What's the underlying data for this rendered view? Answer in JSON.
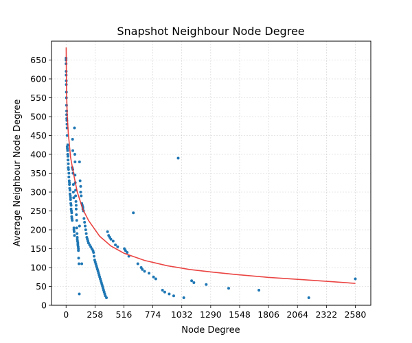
{
  "chart_data": {
    "type": "scatter",
    "title": "Snapshot Neighbour Node Degree",
    "xlabel": "Node Degree",
    "ylabel": "Average Neighbour Node Degree",
    "xlim": [
      -130,
      2718
    ],
    "ylim": [
      0,
      700
    ],
    "x_ticks": [
      0,
      258,
      516,
      774,
      1032,
      1290,
      1548,
      1806,
      2064,
      2322,
      2580
    ],
    "y_ticks": [
      0,
      50,
      100,
      150,
      200,
      250,
      300,
      350,
      400,
      450,
      500,
      550,
      600,
      650
    ],
    "grid": true,
    "colors": {
      "points": "#1f77b4",
      "fit": "#e8312f",
      "grid": "#b0b0b0"
    },
    "fit_curve": {
      "x": [
        1,
        2,
        5,
        10,
        20,
        40,
        70,
        100,
        150,
        200,
        300,
        400,
        516,
        700,
        900,
        1100,
        1300,
        1500,
        1800,
        2100,
        2400,
        2580
      ],
      "y": [
        683,
        630,
        560,
        505,
        455,
        392,
        343,
        300,
        254,
        225,
        183,
        157,
        138,
        119,
        105,
        95,
        88,
        82,
        74,
        68,
        62,
        58
      ]
    },
    "points": {
      "x": [
        0,
        0,
        0,
        1,
        1,
        2,
        2,
        3,
        3,
        4,
        5,
        5,
        6,
        7,
        8,
        9,
        10,
        10,
        12,
        14,
        15,
        15,
        17,
        18,
        20,
        20,
        22,
        25,
        25,
        28,
        30,
        30,
        32,
        35,
        35,
        38,
        40,
        40,
        42,
        45,
        45,
        48,
        50,
        50,
        52,
        55,
        55,
        58,
        60,
        60,
        62,
        65,
        65,
        68,
        70,
        70,
        72,
        75,
        75,
        78,
        80,
        80,
        82,
        85,
        85,
        88,
        90,
        90,
        92,
        95,
        95,
        98,
        100,
        100,
        102,
        105,
        105,
        108,
        110,
        110,
        112,
        115,
        118,
        120,
        120,
        125,
        130,
        130,
        135,
        140,
        140,
        145,
        150,
        150,
        155,
        160,
        165,
        170,
        175,
        180,
        185,
        190,
        195,
        200,
        210,
        220,
        230,
        240,
        245,
        250,
        255,
        260,
        265,
        270,
        275,
        280,
        285,
        290,
        295,
        300,
        305,
        310,
        315,
        320,
        325,
        330,
        335,
        340,
        345,
        350,
        360,
        370,
        380,
        390,
        400,
        420,
        440,
        460,
        520,
        530,
        545,
        560,
        600,
        640,
        670,
        680,
        700,
        740,
        780,
        800,
        860,
        880,
        920,
        960,
        1000,
        1050,
        1120,
        1140,
        1250,
        1450,
        1720,
        2165,
        2580
      ],
      "y": [
        655,
        650,
        640,
        620,
        610,
        595,
        585,
        565,
        550,
        530,
        515,
        505,
        495,
        490,
        480,
        470,
        450,
        420,
        415,
        410,
        425,
        400,
        395,
        385,
        375,
        365,
        360,
        350,
        340,
        330,
        325,
        320,
        310,
        305,
        295,
        290,
        285,
        280,
        270,
        265,
        255,
        250,
        245,
        235,
        230,
        225,
        365,
        440,
        410,
        360,
        350,
        320,
        300,
        285,
        205,
        200,
        195,
        185,
        470,
        400,
        380,
        345,
        325,
        305,
        290,
        275,
        265,
        255,
        240,
        225,
        205,
        190,
        180,
        175,
        170,
        165,
        160,
        155,
        150,
        145,
        125,
        110,
        30,
        210,
        380,
        330,
        315,
        300,
        290,
        110,
        270,
        265,
        260,
        255,
        250,
        230,
        220,
        210,
        200,
        190,
        180,
        175,
        170,
        165,
        160,
        155,
        150,
        145,
        140,
        130,
        120,
        115,
        110,
        105,
        100,
        95,
        90,
        85,
        80,
        75,
        70,
        65,
        60,
        55,
        50,
        45,
        40,
        35,
        30,
        25,
        20,
        195,
        185,
        180,
        175,
        170,
        160,
        155,
        150,
        145,
        140,
        130,
        245,
        110,
        100,
        95,
        90,
        85,
        75,
        70,
        40,
        35,
        30,
        25,
        390,
        20,
        65,
        60,
        55,
        45,
        40,
        20,
        70
      ]
    }
  }
}
